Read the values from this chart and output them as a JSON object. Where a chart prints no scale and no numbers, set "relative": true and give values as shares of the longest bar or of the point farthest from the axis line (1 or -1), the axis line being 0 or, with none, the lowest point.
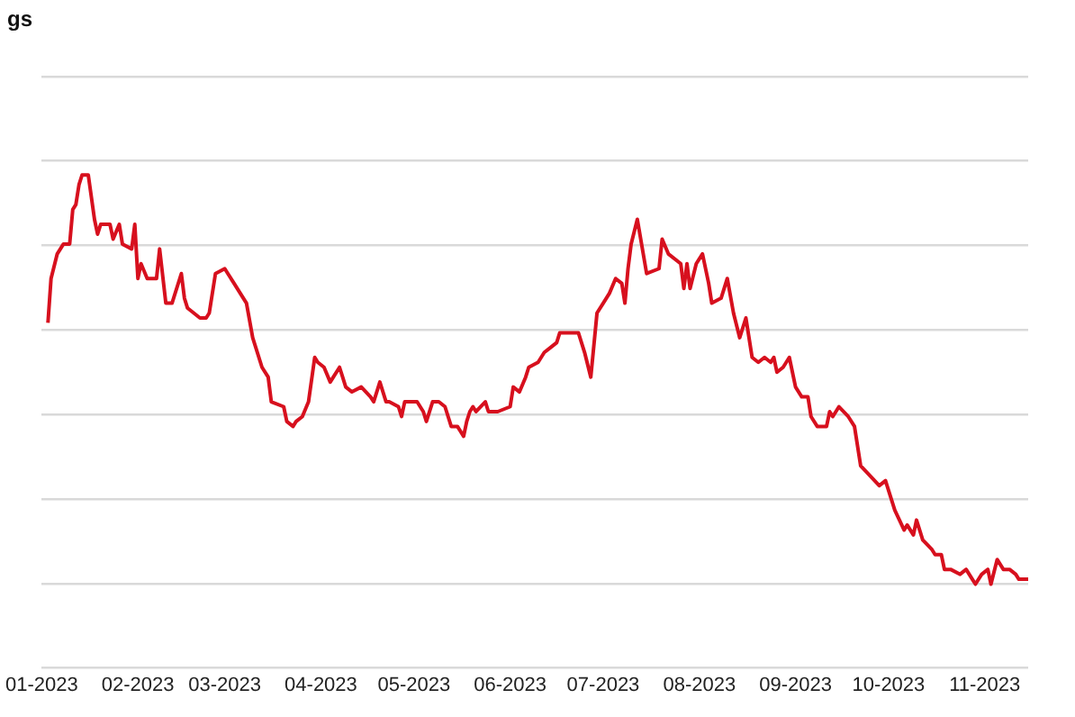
{
  "chart_data": {
    "type": "line",
    "title": "gs",
    "relative": true,
    "grid": "y",
    "legend": false,
    "marker": "none",
    "line_style": "solid",
    "xlim": [
      "2023-01-01",
      "2023-11-15"
    ],
    "xticks": [
      {
        "value": "2023-01-01",
        "label": "01-2023"
      },
      {
        "value": "2023-02-01",
        "label": "02-2023"
      },
      {
        "value": "2023-03-01",
        "label": "03-2023"
      },
      {
        "value": "2023-04-01",
        "label": "04-2023"
      },
      {
        "value": "2023-05-01",
        "label": "05-2023"
      },
      {
        "value": "2023-06-01",
        "label": "06-2023"
      },
      {
        "value": "2023-07-01",
        "label": "07-2023"
      },
      {
        "value": "2023-08-01",
        "label": "08-2023"
      },
      {
        "value": "2023-09-01",
        "label": "09-2023"
      },
      {
        "value": "2023-10-01",
        "label": "10-2023"
      },
      {
        "value": "2023-11-01",
        "label": "11-2023"
      }
    ],
    "x": [
      "2023-01-03",
      "2023-01-04",
      "2023-01-06",
      "2023-01-08",
      "2023-01-10",
      "2023-01-11",
      "2023-01-12",
      "2023-01-13",
      "2023-01-14",
      "2023-01-16",
      "2023-01-18",
      "2023-01-19",
      "2023-01-20",
      "2023-01-23",
      "2023-01-24",
      "2023-01-26",
      "2023-01-27",
      "2023-01-30",
      "2023-01-31",
      "2023-02-01",
      "2023-02-02",
      "2023-02-04",
      "2023-02-07",
      "2023-02-08",
      "2023-02-10",
      "2023-02-12",
      "2023-02-15",
      "2023-02-16",
      "2023-02-17",
      "2023-02-21",
      "2023-02-23",
      "2023-02-24",
      "2023-02-26",
      "2023-03-01",
      "2023-03-02",
      "2023-03-04",
      "2023-03-06",
      "2023-03-08",
      "2023-03-10",
      "2023-03-13",
      "2023-03-15",
      "2023-03-16",
      "2023-03-20",
      "2023-03-21",
      "2023-03-23",
      "2023-03-24",
      "2023-03-26",
      "2023-03-28",
      "2023-03-30",
      "2023-03-31",
      "2023-04-02",
      "2023-04-04",
      "2023-04-05",
      "2023-04-07",
      "2023-04-08",
      "2023-04-09",
      "2023-04-11",
      "2023-04-14",
      "2023-04-17",
      "2023-04-18",
      "2023-04-19",
      "2023-04-20",
      "2023-04-22",
      "2023-04-23",
      "2023-04-26",
      "2023-04-27",
      "2023-04-28",
      "2023-04-30",
      "2023-05-02",
      "2023-05-04",
      "2023-05-05",
      "2023-05-07",
      "2023-05-09",
      "2023-05-11",
      "2023-05-13",
      "2023-05-14",
      "2023-05-15",
      "2023-05-17",
      "2023-05-18",
      "2023-05-19",
      "2023-05-20",
      "2023-05-21",
      "2023-05-24",
      "2023-05-25",
      "2023-05-28",
      "2023-06-01",
      "2023-06-02",
      "2023-06-04",
      "2023-06-06",
      "2023-06-07",
      "2023-06-10",
      "2023-06-12",
      "2023-06-14",
      "2023-06-16",
      "2023-06-17",
      "2023-06-23",
      "2023-06-25",
      "2023-06-27",
      "2023-06-29",
      "2023-07-01",
      "2023-07-03",
      "2023-07-05",
      "2023-07-07",
      "2023-07-08",
      "2023-07-09",
      "2023-07-10",
      "2023-07-12",
      "2023-07-15",
      "2023-07-19",
      "2023-07-20",
      "2023-07-22",
      "2023-07-26",
      "2023-07-27",
      "2023-07-28",
      "2023-07-29",
      "2023-07-31",
      "2023-08-02",
      "2023-08-04",
      "2023-08-05",
      "2023-08-08",
      "2023-08-09",
      "2023-08-10",
      "2023-08-12",
      "2023-08-14",
      "2023-08-16",
      "2023-08-17",
      "2023-08-18",
      "2023-08-20",
      "2023-08-22",
      "2023-08-24",
      "2023-08-25",
      "2023-08-26",
      "2023-08-28",
      "2023-08-30",
      "2023-09-01",
      "2023-09-03",
      "2023-09-05",
      "2023-09-06",
      "2023-09-08",
      "2023-09-11",
      "2023-09-12",
      "2023-09-13",
      "2023-09-15",
      "2023-09-18",
      "2023-09-20",
      "2023-09-22",
      "2023-09-25",
      "2023-09-28",
      "2023-09-30",
      "2023-10-03",
      "2023-10-06",
      "2023-10-07",
      "2023-10-09",
      "2023-10-10",
      "2023-10-12",
      "2023-10-15",
      "2023-10-16",
      "2023-10-18",
      "2023-10-19",
      "2023-10-21",
      "2023-10-24",
      "2023-10-26",
      "2023-10-28",
      "2023-10-29",
      "2023-10-31",
      "2023-11-02",
      "2023-11-03",
      "2023-11-05",
      "2023-11-07",
      "2023-11-09",
      "2023-11-11",
      "2023-11-12",
      "2023-11-15"
    ],
    "series": [
      {
        "color": "#d7101e",
        "values": [
          0.7,
          0.79,
          0.84,
          0.86,
          0.86,
          0.93,
          0.94,
          0.98,
          1.0,
          1.0,
          0.91,
          0.88,
          0.9,
          0.9,
          0.87,
          0.9,
          0.86,
          0.85,
          0.9,
          0.79,
          0.82,
          0.79,
          0.79,
          0.85,
          0.74,
          0.74,
          0.8,
          0.75,
          0.73,
          0.71,
          0.71,
          0.72,
          0.8,
          0.81,
          0.8,
          0.78,
          0.76,
          0.74,
          0.67,
          0.61,
          0.59,
          0.54,
          0.53,
          0.5,
          0.49,
          0.5,
          0.51,
          0.54,
          0.63,
          0.62,
          0.61,
          0.58,
          0.59,
          0.61,
          0.59,
          0.57,
          0.56,
          0.57,
          0.55,
          0.54,
          0.56,
          0.58,
          0.54,
          0.54,
          0.53,
          0.51,
          0.54,
          0.54,
          0.54,
          0.52,
          0.5,
          0.54,
          0.54,
          0.53,
          0.49,
          0.49,
          0.49,
          0.47,
          0.5,
          0.52,
          0.53,
          0.52,
          0.54,
          0.52,
          0.52,
          0.53,
          0.57,
          0.56,
          0.59,
          0.61,
          0.62,
          0.64,
          0.65,
          0.66,
          0.68,
          0.68,
          0.64,
          0.59,
          0.72,
          0.74,
          0.76,
          0.79,
          0.78,
          0.74,
          0.81,
          0.86,
          0.91,
          0.8,
          0.81,
          0.87,
          0.84,
          0.82,
          0.77,
          0.82,
          0.77,
          0.82,
          0.84,
          0.78,
          0.74,
          0.75,
          0.77,
          0.79,
          0.72,
          0.67,
          0.71,
          0.67,
          0.63,
          0.62,
          0.63,
          0.62,
          0.63,
          0.6,
          0.61,
          0.63,
          0.57,
          0.55,
          0.55,
          0.51,
          0.49,
          0.49,
          0.52,
          0.51,
          0.53,
          0.51,
          0.49,
          0.41,
          0.39,
          0.37,
          0.38,
          0.32,
          0.28,
          0.29,
          0.27,
          0.3,
          0.26,
          0.24,
          0.23,
          0.23,
          0.2,
          0.2,
          0.19,
          0.2,
          0.18,
          0.17,
          0.19,
          0.2,
          0.17,
          0.22,
          0.2,
          0.2,
          0.19,
          0.18,
          0.18
        ]
      }
    ]
  }
}
